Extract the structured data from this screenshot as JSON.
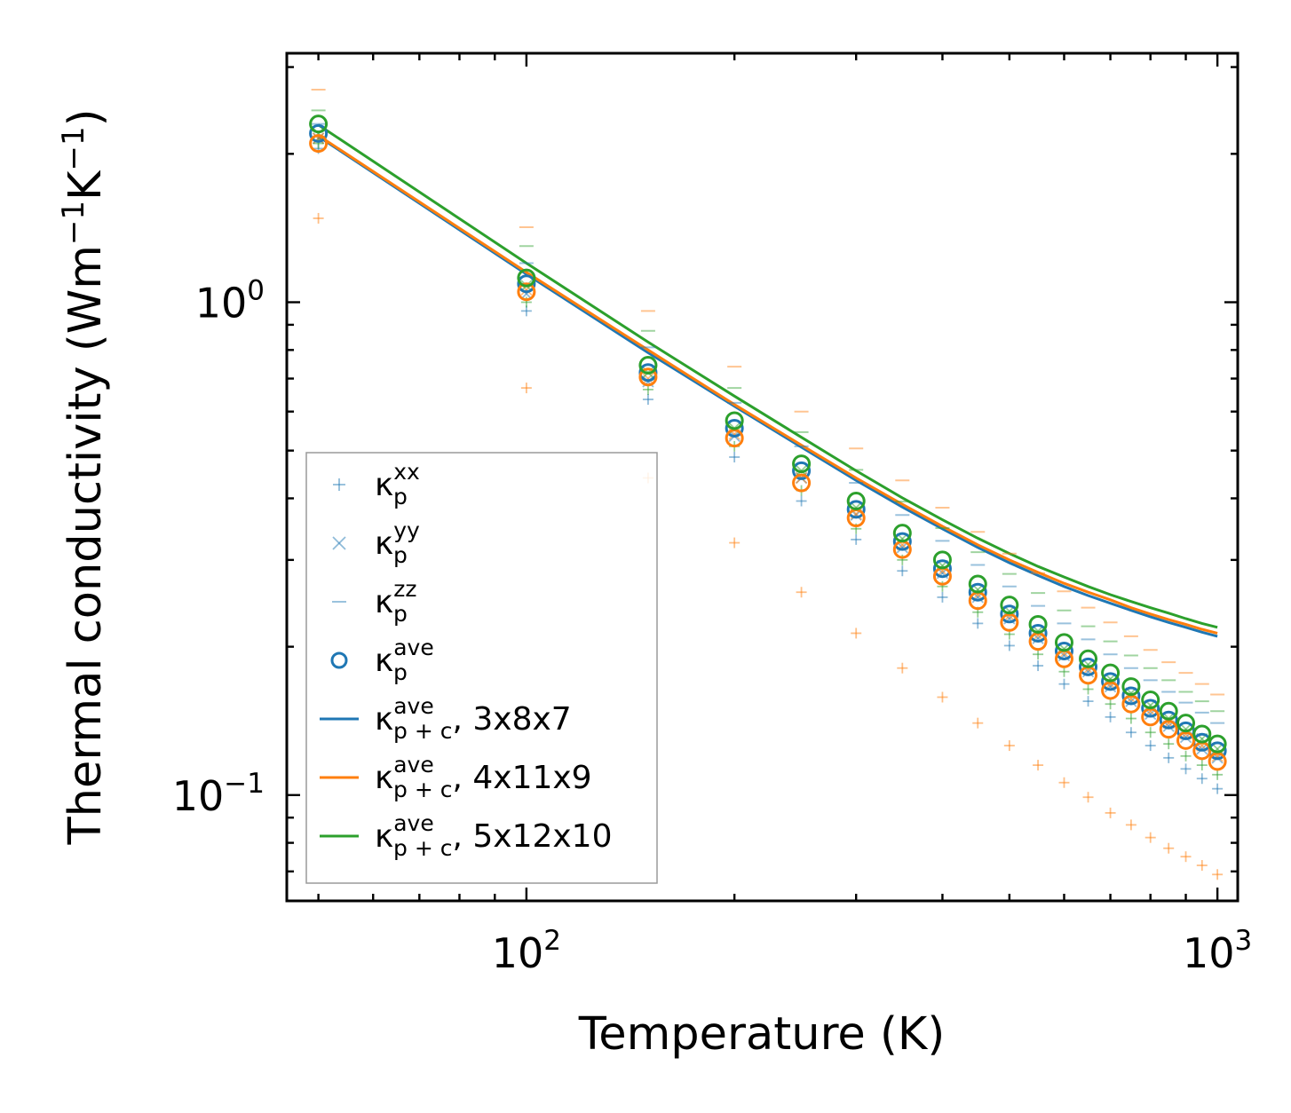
{
  "chart_data": {
    "type": "scatter",
    "title": "",
    "xlabel": "Temperature (K)",
    "ylabel_base": "Thermal conductivity (Wm",
    "ylabel_mid": "K",
    "ylabel_end": ")",
    "ylabel_exp": "−1",
    "xscale": "log",
    "yscale": "log",
    "xlim": [
      45,
      1070
    ],
    "ylim": [
      0.061,
      3.2
    ],
    "x_ticks": [
      {
        "value": 100,
        "base": "10",
        "exp": "2"
      },
      {
        "value": 1000,
        "base": "10",
        "exp": "3"
      }
    ],
    "y_ticks": [
      {
        "value": 1.0,
        "base": "10",
        "exp": "0"
      },
      {
        "value": 0.1,
        "base": "10",
        "exp": "−1"
      }
    ],
    "temperatures": [
      50,
      100,
      150,
      200,
      250,
      300,
      350,
      400,
      450,
      500,
      550,
      600,
      650,
      700,
      750,
      800,
      850,
      900,
      950,
      1000
    ],
    "colors": {
      "blue": "#1f77b4",
      "orange": "#ff7f0e",
      "green": "#2ca02c"
    },
    "legend": {
      "location": "lower-left",
      "entries": [
        {
          "symbol": "+",
          "color": "#1f77b4",
          "base": "κ",
          "sup": "xx",
          "sub": "p",
          "suffix": ""
        },
        {
          "symbol": "x",
          "color": "#1f77b4",
          "base": "κ",
          "sup": "yy",
          "sub": "p",
          "suffix": ""
        },
        {
          "symbol": "-",
          "color": "#1f77b4",
          "base": "κ",
          "sup": "zz",
          "sub": "p",
          "suffix": ""
        },
        {
          "symbol": "o",
          "color": "#1f77b4",
          "base": "κ",
          "sup": "ave",
          "sub": "p",
          "suffix": ""
        },
        {
          "symbol": "line",
          "color": "#1f77b4",
          "base": "κ",
          "sup": "ave",
          "sub": "p + c",
          "suffix": ", 3x8x7"
        },
        {
          "symbol": "line",
          "color": "#ff7f0e",
          "base": "κ",
          "sup": "ave",
          "sub": "p + c",
          "suffix": ", 4x11x9"
        },
        {
          "symbol": "line",
          "color": "#2ca02c",
          "base": "κ",
          "sup": "ave",
          "sub": "p + c",
          "suffix": ", 5x12x10"
        }
      ]
    },
    "series": [
      {
        "name": "3x8x7",
        "color": "#1f77b4",
        "kxx": [
          2.05,
          0.96,
          0.635,
          0.485,
          0.395,
          0.33,
          0.285,
          0.252,
          0.223,
          0.201,
          0.183,
          0.168,
          0.155,
          0.144,
          0.134,
          0.126,
          0.119,
          0.113,
          0.108,
          0.103
        ],
        "kyy": [
          2.15,
          1.04,
          0.69,
          0.535,
          0.44,
          0.37,
          0.318,
          0.282,
          0.252,
          0.228,
          0.208,
          0.192,
          0.178,
          0.166,
          0.155,
          0.146,
          0.138,
          0.131,
          0.124,
          0.119
        ],
        "kzz": [
          2.3,
          1.2,
          0.81,
          0.625,
          0.51,
          0.43,
          0.37,
          0.328,
          0.293,
          0.265,
          0.242,
          0.223,
          0.207,
          0.193,
          0.181,
          0.171,
          0.162,
          0.154,
          0.147,
          0.14
        ],
        "kave": [
          2.2,
          1.09,
          0.72,
          0.555,
          0.455,
          0.38,
          0.327,
          0.288,
          0.258,
          0.233,
          0.213,
          0.196,
          0.182,
          0.17,
          0.159,
          0.15,
          0.142,
          0.135,
          0.128,
          0.123
        ],
        "kpc": [
          2.17,
          1.14,
          0.79,
          0.615,
          0.508,
          0.435,
          0.384,
          0.347,
          0.318,
          0.296,
          0.279,
          0.265,
          0.254,
          0.245,
          0.237,
          0.23,
          0.224,
          0.219,
          0.214,
          0.21
        ]
      },
      {
        "name": "4x11x9",
        "color": "#ff7f0e",
        "kxx": [
          1.48,
          0.67,
          0.44,
          0.325,
          0.258,
          0.213,
          0.181,
          0.158,
          0.14,
          0.126,
          0.115,
          0.106,
          0.099,
          0.092,
          0.087,
          0.082,
          0.078,
          0.075,
          0.072,
          0.069
        ],
        "kyy": [
          2.15,
          1.06,
          0.7,
          0.54,
          0.44,
          0.372,
          0.322,
          0.285,
          0.255,
          0.231,
          0.211,
          0.194,
          0.18,
          0.168,
          0.157,
          0.148,
          0.14,
          0.133,
          0.126,
          0.12
        ],
        "kzz": [
          2.7,
          1.42,
          0.96,
          0.74,
          0.6,
          0.505,
          0.435,
          0.383,
          0.342,
          0.309,
          0.282,
          0.259,
          0.24,
          0.224,
          0.21,
          0.197,
          0.186,
          0.177,
          0.168,
          0.16
        ],
        "kave": [
          2.1,
          1.05,
          0.705,
          0.53,
          0.43,
          0.365,
          0.315,
          0.278,
          0.248,
          0.224,
          0.205,
          0.189,
          0.175,
          0.163,
          0.153,
          0.144,
          0.136,
          0.129,
          0.123,
          0.117
        ],
        "kpc": [
          2.18,
          1.15,
          0.8,
          0.62,
          0.513,
          0.44,
          0.389,
          0.351,
          0.322,
          0.3,
          0.283,
          0.269,
          0.258,
          0.249,
          0.24,
          0.233,
          0.227,
          0.222,
          0.217,
          0.213
        ]
      },
      {
        "name": "5x12x10",
        "color": "#2ca02c",
        "kxx": [
          2.1,
          1.0,
          0.665,
          0.51,
          0.415,
          0.347,
          0.3,
          0.265,
          0.235,
          0.212,
          0.193,
          0.178,
          0.164,
          0.153,
          0.143,
          0.134,
          0.127,
          0.12,
          0.115,
          0.11
        ],
        "kyy": [
          2.2,
          1.08,
          0.72,
          0.555,
          0.455,
          0.383,
          0.331,
          0.292,
          0.261,
          0.236,
          0.215,
          0.198,
          0.184,
          0.172,
          0.161,
          0.152,
          0.143,
          0.136,
          0.13,
          0.124
        ],
        "kzz": [
          2.45,
          1.3,
          0.875,
          0.67,
          0.545,
          0.457,
          0.394,
          0.348,
          0.311,
          0.281,
          0.257,
          0.237,
          0.22,
          0.205,
          0.192,
          0.181,
          0.171,
          0.162,
          0.155,
          0.148
        ],
        "kave": [
          2.3,
          1.12,
          0.745,
          0.575,
          0.47,
          0.395,
          0.34,
          0.3,
          0.268,
          0.243,
          0.222,
          0.204,
          0.189,
          0.177,
          0.166,
          0.156,
          0.148,
          0.14,
          0.133,
          0.127
        ],
        "kpc": [
          2.29,
          1.2,
          0.83,
          0.645,
          0.532,
          0.455,
          0.401,
          0.362,
          0.332,
          0.309,
          0.291,
          0.277,
          0.265,
          0.255,
          0.247,
          0.24,
          0.234,
          0.228,
          0.223,
          0.219
        ]
      }
    ]
  }
}
